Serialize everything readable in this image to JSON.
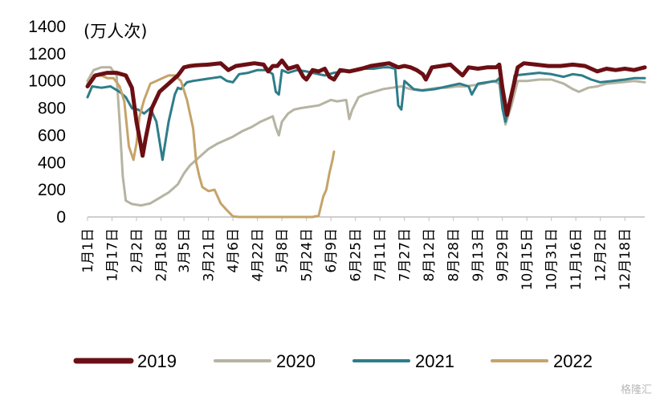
{
  "chart_data": {
    "type": "line",
    "unit": "(万人次)",
    "ylim": [
      0,
      1400
    ],
    "yticks": [
      0,
      200,
      400,
      600,
      800,
      1000,
      1200,
      1400
    ],
    "xlim": [
      1,
      365
    ],
    "x_tick_labels": [
      {
        "label": "1月1日",
        "day": 1
      },
      {
        "label": "1月17日",
        "day": 17
      },
      {
        "label": "2月2日",
        "day": 33
      },
      {
        "label": "2月18日",
        "day": 49
      },
      {
        "label": "3月5日",
        "day": 64
      },
      {
        "label": "3月21日",
        "day": 80
      },
      {
        "label": "4月6日",
        "day": 96
      },
      {
        "label": "4月22日",
        "day": 112
      },
      {
        "label": "5月8日",
        "day": 128
      },
      {
        "label": "5月24日",
        "day": 144
      },
      {
        "label": "6月9日",
        "day": 160
      },
      {
        "label": "6月25日",
        "day": 176
      },
      {
        "label": "7月11日",
        "day": 192
      },
      {
        "label": "7月27日",
        "day": 208
      },
      {
        "label": "8月12日",
        "day": 224
      },
      {
        "label": "8月28日",
        "day": 240
      },
      {
        "label": "9月13日",
        "day": 256
      },
      {
        "label": "9月29日",
        "day": 272
      },
      {
        "label": "10月15日",
        "day": 288
      },
      {
        "label": "10月31日",
        "day": 304
      },
      {
        "label": "11月16日",
        "day": 320
      },
      {
        "label": "12月2日",
        "day": 336
      },
      {
        "label": "12月18日",
        "day": 352
      }
    ],
    "legend_position": "bottom",
    "grid": false,
    "series": [
      {
        "name": "2019",
        "color": "#6b0f14",
        "width": 5,
        "points": [
          [
            1,
            960
          ],
          [
            6,
            1040
          ],
          [
            14,
            1060
          ],
          [
            20,
            1060
          ],
          [
            26,
            1040
          ],
          [
            30,
            950
          ],
          [
            33,
            700
          ],
          [
            35,
            580
          ],
          [
            37,
            450
          ],
          [
            39,
            580
          ],
          [
            43,
            800
          ],
          [
            48,
            920
          ],
          [
            54,
            980
          ],
          [
            60,
            1040
          ],
          [
            64,
            1100
          ],
          [
            68,
            1110
          ],
          [
            72,
            1115
          ],
          [
            80,
            1120
          ],
          [
            88,
            1130
          ],
          [
            93,
            1080
          ],
          [
            98,
            1110
          ],
          [
            104,
            1120
          ],
          [
            110,
            1130
          ],
          [
            116,
            1120
          ],
          [
            119,
            1070
          ],
          [
            122,
            1110
          ],
          [
            125,
            1110
          ],
          [
            128,
            1150
          ],
          [
            132,
            1090
          ],
          [
            138,
            1110
          ],
          [
            142,
            1030
          ],
          [
            144,
            1010
          ],
          [
            148,
            1080
          ],
          [
            152,
            1070
          ],
          [
            156,
            1090
          ],
          [
            159,
            1030
          ],
          [
            162,
            1010
          ],
          [
            166,
            1080
          ],
          [
            172,
            1070
          ],
          [
            180,
            1090
          ],
          [
            186,
            1110
          ],
          [
            192,
            1120
          ],
          [
            198,
            1130
          ],
          [
            204,
            1100
          ],
          [
            208,
            1110
          ],
          [
            212,
            1100
          ],
          [
            216,
            1080
          ],
          [
            220,
            1050
          ],
          [
            222,
            1010
          ],
          [
            226,
            1100
          ],
          [
            232,
            1110
          ],
          [
            238,
            1120
          ],
          [
            242,
            1080
          ],
          [
            246,
            1040
          ],
          [
            250,
            1100
          ],
          [
            256,
            1090
          ],
          [
            262,
            1100
          ],
          [
            268,
            1100
          ],
          [
            270,
            1120
          ],
          [
            272,
            950
          ],
          [
            275,
            750
          ],
          [
            278,
            900
          ],
          [
            282,
            1100
          ],
          [
            286,
            1130
          ],
          [
            294,
            1120
          ],
          [
            302,
            1110
          ],
          [
            310,
            1110
          ],
          [
            318,
            1120
          ],
          [
            326,
            1110
          ],
          [
            330,
            1090
          ],
          [
            334,
            1070
          ],
          [
            340,
            1090
          ],
          [
            346,
            1080
          ],
          [
            352,
            1090
          ],
          [
            358,
            1080
          ],
          [
            365,
            1100
          ]
        ]
      },
      {
        "name": "2020",
        "color": "#b6b4a2",
        "width": 3,
        "points": [
          [
            1,
            1000
          ],
          [
            5,
            1080
          ],
          [
            10,
            1100
          ],
          [
            16,
            1100
          ],
          [
            20,
            1040
          ],
          [
            22,
            700
          ],
          [
            24,
            300
          ],
          [
            26,
            120
          ],
          [
            30,
            95
          ],
          [
            36,
            85
          ],
          [
            42,
            100
          ],
          [
            48,
            140
          ],
          [
            54,
            180
          ],
          [
            60,
            240
          ],
          [
            64,
            320
          ],
          [
            68,
            380
          ],
          [
            74,
            440
          ],
          [
            80,
            500
          ],
          [
            86,
            540
          ],
          [
            92,
            570
          ],
          [
            96,
            590
          ],
          [
            102,
            630
          ],
          [
            108,
            660
          ],
          [
            114,
            700
          ],
          [
            118,
            720
          ],
          [
            122,
            740
          ],
          [
            124,
            660
          ],
          [
            126,
            600
          ],
          [
            128,
            700
          ],
          [
            132,
            760
          ],
          [
            136,
            790
          ],
          [
            140,
            800
          ],
          [
            146,
            810
          ],
          [
            152,
            820
          ],
          [
            156,
            840
          ],
          [
            160,
            860
          ],
          [
            164,
            850
          ],
          [
            170,
            860
          ],
          [
            172,
            720
          ],
          [
            174,
            790
          ],
          [
            178,
            880
          ],
          [
            182,
            900
          ],
          [
            188,
            920
          ],
          [
            194,
            940
          ],
          [
            200,
            950
          ],
          [
            206,
            960
          ],
          [
            212,
            940
          ],
          [
            218,
            930
          ],
          [
            224,
            940
          ],
          [
            230,
            950
          ],
          [
            236,
            950
          ],
          [
            242,
            960
          ],
          [
            248,
            960
          ],
          [
            254,
            970
          ],
          [
            260,
            980
          ],
          [
            266,
            1000
          ],
          [
            270,
            980
          ],
          [
            272,
            820
          ],
          [
            274,
            680
          ],
          [
            278,
            820
          ],
          [
            282,
            1000
          ],
          [
            288,
            1000
          ],
          [
            296,
            1010
          ],
          [
            304,
            1010
          ],
          [
            312,
            980
          ],
          [
            318,
            940
          ],
          [
            322,
            920
          ],
          [
            328,
            950
          ],
          [
            334,
            960
          ],
          [
            340,
            980
          ],
          [
            350,
            990
          ],
          [
            358,
            1000
          ],
          [
            365,
            990
          ]
        ]
      },
      {
        "name": "2021",
        "color": "#2e7d89",
        "width": 3,
        "points": [
          [
            1,
            880
          ],
          [
            4,
            960
          ],
          [
            10,
            950
          ],
          [
            16,
            960
          ],
          [
            22,
            920
          ],
          [
            26,
            880
          ],
          [
            30,
            800
          ],
          [
            34,
            790
          ],
          [
            38,
            760
          ],
          [
            42,
            800
          ],
          [
            46,
            700
          ],
          [
            50,
            420
          ],
          [
            54,
            700
          ],
          [
            58,
            900
          ],
          [
            60,
            950
          ],
          [
            62,
            940
          ],
          [
            66,
            990
          ],
          [
            70,
            1000
          ],
          [
            76,
            1010
          ],
          [
            82,
            1020
          ],
          [
            88,
            1030
          ],
          [
            92,
            1000
          ],
          [
            96,
            990
          ],
          [
            100,
            1050
          ],
          [
            106,
            1060
          ],
          [
            112,
            1080
          ],
          [
            118,
            1080
          ],
          [
            122,
            1050
          ],
          [
            124,
            920
          ],
          [
            126,
            900
          ],
          [
            128,
            1080
          ],
          [
            132,
            1060
          ],
          [
            138,
            1080
          ],
          [
            144,
            1070
          ],
          [
            152,
            1050
          ],
          [
            156,
            1040
          ],
          [
            162,
            1060
          ],
          [
            168,
            1070
          ],
          [
            176,
            1080
          ],
          [
            182,
            1090
          ],
          [
            188,
            1090
          ],
          [
            194,
            1100
          ],
          [
            198,
            1100
          ],
          [
            202,
            1090
          ],
          [
            204,
            820
          ],
          [
            206,
            790
          ],
          [
            208,
            1000
          ],
          [
            214,
            940
          ],
          [
            220,
            930
          ],
          [
            228,
            940
          ],
          [
            236,
            960
          ],
          [
            244,
            980
          ],
          [
            250,
            960
          ],
          [
            252,
            900
          ],
          [
            256,
            980
          ],
          [
            262,
            990
          ],
          [
            268,
            1000
          ],
          [
            270,
            1020
          ],
          [
            272,
            800
          ],
          [
            274,
            700
          ],
          [
            278,
            900
          ],
          [
            280,
            1040
          ],
          [
            288,
            1050
          ],
          [
            296,
            1060
          ],
          [
            304,
            1050
          ],
          [
            312,
            1030
          ],
          [
            318,
            1050
          ],
          [
            324,
            1040
          ],
          [
            330,
            1010
          ],
          [
            336,
            990
          ],
          [
            344,
            1000
          ],
          [
            352,
            1010
          ],
          [
            358,
            1020
          ],
          [
            365,
            1020
          ]
        ]
      },
      {
        "name": "2022",
        "color": "#c5a36a",
        "width": 3,
        "points": [
          [
            1,
            980
          ],
          [
            5,
            1040
          ],
          [
            10,
            1040
          ],
          [
            14,
            1020
          ],
          [
            18,
            1020
          ],
          [
            22,
            960
          ],
          [
            25,
            850
          ],
          [
            28,
            520
          ],
          [
            31,
            420
          ],
          [
            33,
            540
          ],
          [
            35,
            740
          ],
          [
            38,
            860
          ],
          [
            42,
            980
          ],
          [
            46,
            1000
          ],
          [
            50,
            1020
          ],
          [
            54,
            1040
          ],
          [
            58,
            1040
          ],
          [
            62,
            1000
          ],
          [
            66,
            860
          ],
          [
            70,
            650
          ],
          [
            72,
            400
          ],
          [
            74,
            300
          ],
          [
            76,
            220
          ],
          [
            80,
            190
          ],
          [
            84,
            200
          ],
          [
            88,
            100
          ],
          [
            92,
            50
          ],
          [
            96,
            5
          ],
          [
            100,
            0
          ],
          [
            110,
            0
          ],
          [
            120,
            0
          ],
          [
            130,
            0
          ],
          [
            140,
            0
          ],
          [
            148,
            0
          ],
          [
            152,
            10
          ],
          [
            155,
            150
          ],
          [
            157,
            200
          ],
          [
            159,
            320
          ],
          [
            161,
            420
          ],
          [
            162,
            480
          ]
        ]
      }
    ]
  },
  "watermark": "格隆汇"
}
